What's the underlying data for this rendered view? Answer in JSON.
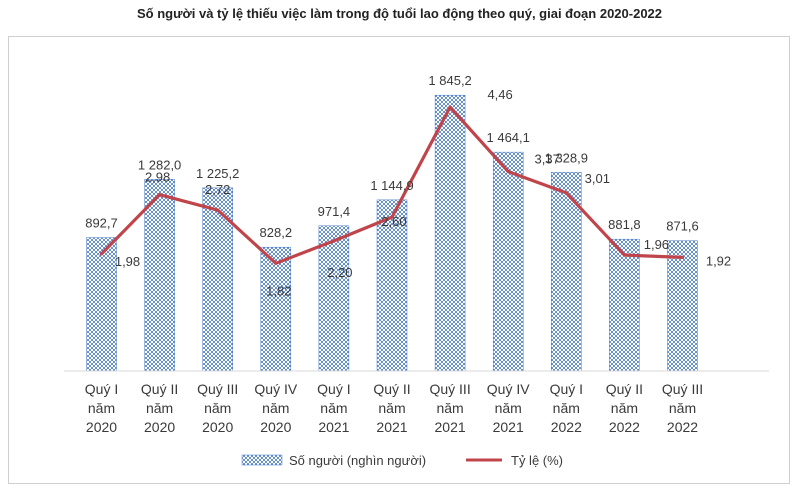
{
  "chart_data": {
    "type": "bar+line",
    "title": "Số người và tỷ lệ thiếu việc làm trong độ tuổi lao động theo quý, giai đoạn 2020-2022",
    "categories": [
      [
        "Quý I",
        "năm",
        "2020"
      ],
      [
        "Quý II",
        "năm",
        "2020"
      ],
      [
        "Quý III",
        "năm",
        "2020"
      ],
      [
        "Quý IV",
        "năm",
        "2020"
      ],
      [
        "Quý I",
        "năm",
        "2021"
      ],
      [
        "Quý II",
        "năm",
        "2021"
      ],
      [
        "Quý III",
        "năm",
        "2021"
      ],
      [
        "Quý IV",
        "năm",
        "2021"
      ],
      [
        "Quý I",
        "năm",
        "2022"
      ],
      [
        "Quý II",
        "năm",
        "2022"
      ],
      [
        "Quý III",
        "năm",
        "2022"
      ]
    ],
    "series": [
      {
        "name": "Số người (nghìn người)",
        "type": "bar",
        "values": [
          892.7,
          1282.0,
          1225.2,
          828.2,
          971.4,
          1144.9,
          1845.2,
          1464.1,
          1328.9,
          881.8,
          871.6
        ],
        "labels": [
          "892,7",
          "1 282,0",
          "1 225,2",
          "828,2",
          "971,4",
          "1 144,9",
          "1 845,2",
          "1 464,1",
          "1 328,9",
          "881,8",
          "871,6"
        ],
        "color": "#4a7cc4"
      },
      {
        "name": "Tỷ lệ (%)",
        "type": "line",
        "values": [
          1.98,
          2.98,
          2.72,
          1.82,
          2.2,
          2.6,
          4.46,
          3.37,
          3.01,
          1.96,
          1.92
        ],
        "labels": [
          "1,98",
          "2,98",
          "2,72",
          "1,82",
          "2,20",
          "2,60",
          "4,46",
          "3,37",
          "3,01",
          "1,96",
          "1,92"
        ],
        "color": "#c0454a"
      }
    ],
    "bar_axis_range": [
      0,
      1900
    ],
    "line_axis_range": [
      0,
      4.8
    ],
    "legend": "bottom-center",
    "grid": false
  }
}
